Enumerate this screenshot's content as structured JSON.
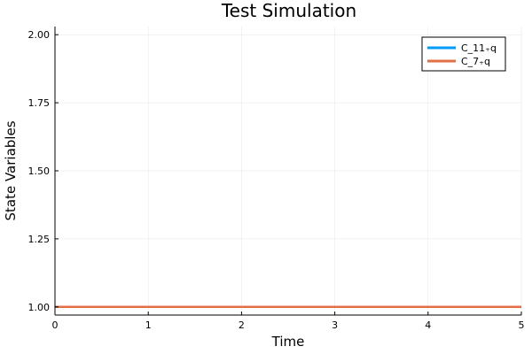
{
  "chart_data": {
    "type": "line",
    "title": "Test Simulation",
    "xlabel": "Time",
    "ylabel": "State Variables",
    "xlim": [
      0,
      5
    ],
    "ylim": [
      0.97,
      2.03
    ],
    "xticks": [
      0,
      1,
      2,
      3,
      4,
      5
    ],
    "xtick_labels": [
      "0",
      "1",
      "2",
      "3",
      "4",
      "5"
    ],
    "yticks": [
      1.0,
      1.25,
      1.5,
      1.75,
      2.0
    ],
    "ytick_labels": [
      "1.00",
      "1.25",
      "1.50",
      "1.75",
      "2.00"
    ],
    "grid": true,
    "legend_position": "top-right",
    "series": [
      {
        "name": "C_11₊q",
        "color": "#009AFA",
        "x": [
          0,
          5
        ],
        "y": [
          1.0,
          1.0
        ]
      },
      {
        "name": "C_7₊q",
        "color": "#E36F47",
        "x": [
          0,
          5
        ],
        "y": [
          1.0,
          1.0
        ]
      }
    ]
  }
}
